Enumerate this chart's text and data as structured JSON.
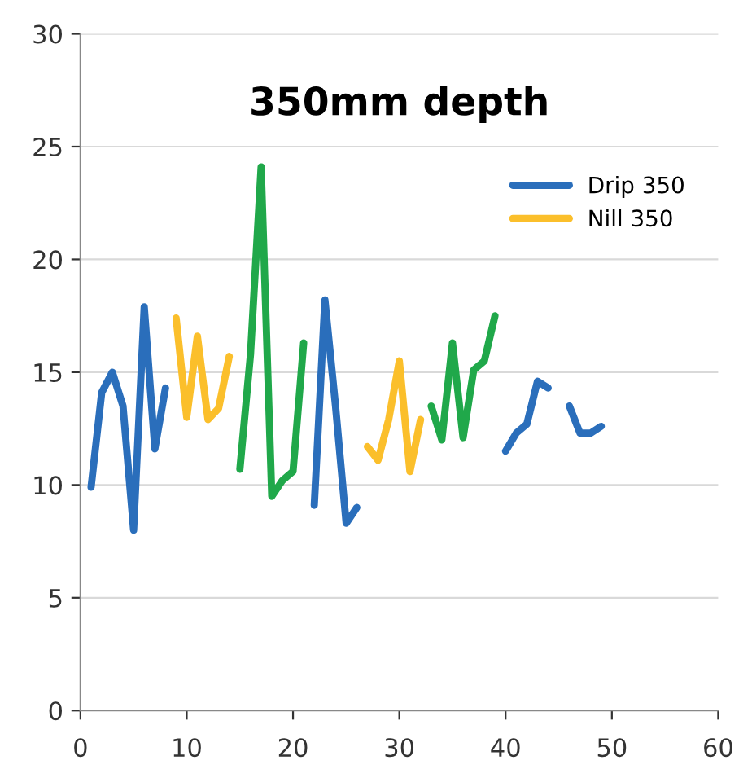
{
  "chart_data": {
    "type": "line",
    "title": "350mm depth",
    "x": [
      1,
      2,
      3,
      4,
      5,
      6,
      7,
      8,
      9,
      10,
      11,
      12,
      13,
      14,
      15,
      16,
      17,
      18,
      19,
      20,
      21,
      22,
      23,
      24,
      25,
      26,
      27,
      28,
      29,
      30,
      31,
      32,
      33,
      34,
      35,
      36,
      37,
      38,
      39,
      40,
      41,
      42,
      43,
      44,
      45,
      46,
      47,
      48,
      49
    ],
    "series": [
      {
        "name": "Drip 350",
        "color": "#2a6ebb",
        "values": [
          9.9,
          14.1,
          15.0,
          13.5,
          8.0,
          17.9,
          11.6,
          14.3,
          null,
          null,
          null,
          null,
          null,
          null,
          null,
          null,
          null,
          null,
          null,
          null,
          null,
          9.1,
          18.2,
          13.5,
          8.3,
          9.0,
          null,
          null,
          null,
          null,
          null,
          null,
          null,
          null,
          null,
          null,
          null,
          null,
          null,
          11.5,
          12.3,
          12.7,
          14.6,
          14.3,
          null,
          13.5,
          12.3,
          12.3,
          12.6
        ]
      },
      {
        "name": "Nill 350",
        "color": "#fbbf2b",
        "values": [
          null,
          null,
          null,
          null,
          null,
          null,
          null,
          null,
          17.4,
          13.0,
          16.6,
          12.9,
          13.4,
          15.7,
          null,
          null,
          null,
          null,
          null,
          null,
          null,
          null,
          null,
          null,
          null,
          null,
          11.7,
          11.1,
          12.9,
          15.5,
          10.6,
          12.9,
          null,
          null,
          null,
          null,
          null,
          null,
          null,
          null,
          null,
          null,
          null,
          null,
          null,
          null,
          null,
          null,
          null
        ]
      },
      {
        "color": "#20a84a",
        "values": [
          null,
          null,
          null,
          null,
          null,
          null,
          null,
          null,
          null,
          null,
          null,
          null,
          null,
          null,
          10.7,
          15.8,
          24.1,
          9.5,
          10.2,
          10.6,
          16.3,
          null,
          null,
          null,
          null,
          null,
          null,
          null,
          null,
          null,
          null,
          null,
          13.5,
          12.0,
          16.3,
          12.1,
          15.1,
          15.5,
          17.5,
          null,
          null,
          null,
          null,
          null,
          null,
          null,
          null,
          null,
          null
        ]
      }
    ],
    "xlim": [
      0,
      60
    ],
    "xticks": [
      0,
      10,
      20,
      30,
      40,
      50,
      60
    ],
    "ylim": [
      0,
      30
    ],
    "yticks": [
      0,
      5,
      10,
      15,
      20,
      25,
      30
    ],
    "grid": "y",
    "legend": "top right",
    "marker": "none",
    "line_style": "solid"
  }
}
